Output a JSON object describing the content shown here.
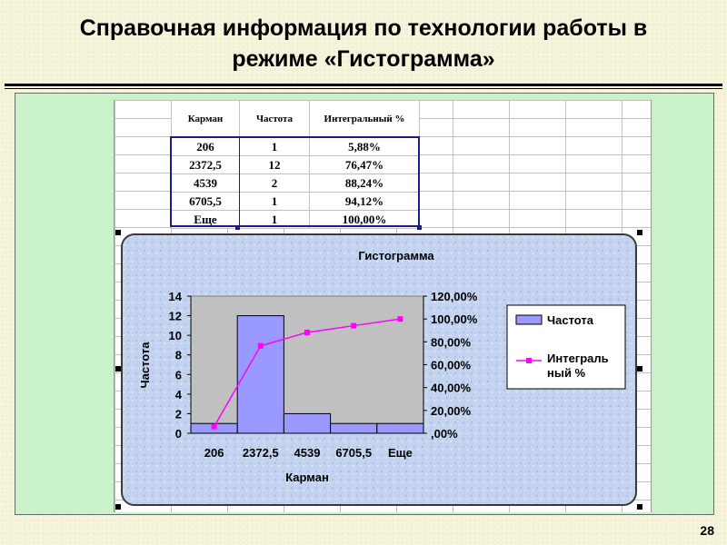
{
  "slide": {
    "title_line1": "Справочная информация по технологии работы в",
    "title_line2": "режиме «Гистограмма»",
    "page_number": "28"
  },
  "table": {
    "headers": [
      "Карман",
      "Частота",
      "Интегральный %"
    ],
    "rows": [
      [
        "206",
        "1",
        "5,88%"
      ],
      [
        "2372,5",
        "12",
        "76,47%"
      ],
      [
        "4539",
        "2",
        "88,24%"
      ],
      [
        "6705,5",
        "1",
        "94,12%"
      ],
      [
        "Еще",
        "1",
        "100,00%"
      ]
    ]
  },
  "chart_data": {
    "type": "bar",
    "title": "Гистограмма",
    "xlabel": "Карман",
    "ylabel": "Частота",
    "categories": [
      "206",
      "2372,5",
      "4539",
      "6705,5",
      "Еще"
    ],
    "series": [
      {
        "name": "Частота",
        "type": "bar",
        "axis": "left",
        "values": [
          1,
          12,
          2,
          1,
          1
        ],
        "color": "#9999ff"
      },
      {
        "name": "Интегральный %",
        "type": "line",
        "axis": "right",
        "values": [
          5.88,
          76.47,
          88.24,
          94.12,
          100.0
        ],
        "color": "#ff00ff"
      }
    ],
    "ylim": [
      0,
      14
    ],
    "yticks": [
      "0",
      "2",
      "4",
      "6",
      "8",
      "10",
      "12",
      "14"
    ],
    "y2lim": [
      0,
      120
    ],
    "y2ticks": [
      ",00%",
      "20,00%",
      "40,00%",
      "60,00%",
      "80,00%",
      "100,00%",
      "120,00%"
    ],
    "legend": {
      "placement": "right",
      "items": [
        "Частота",
        "Интеграль ный %"
      ]
    },
    "plot_bg": "#c0c0c0",
    "grid": false
  }
}
